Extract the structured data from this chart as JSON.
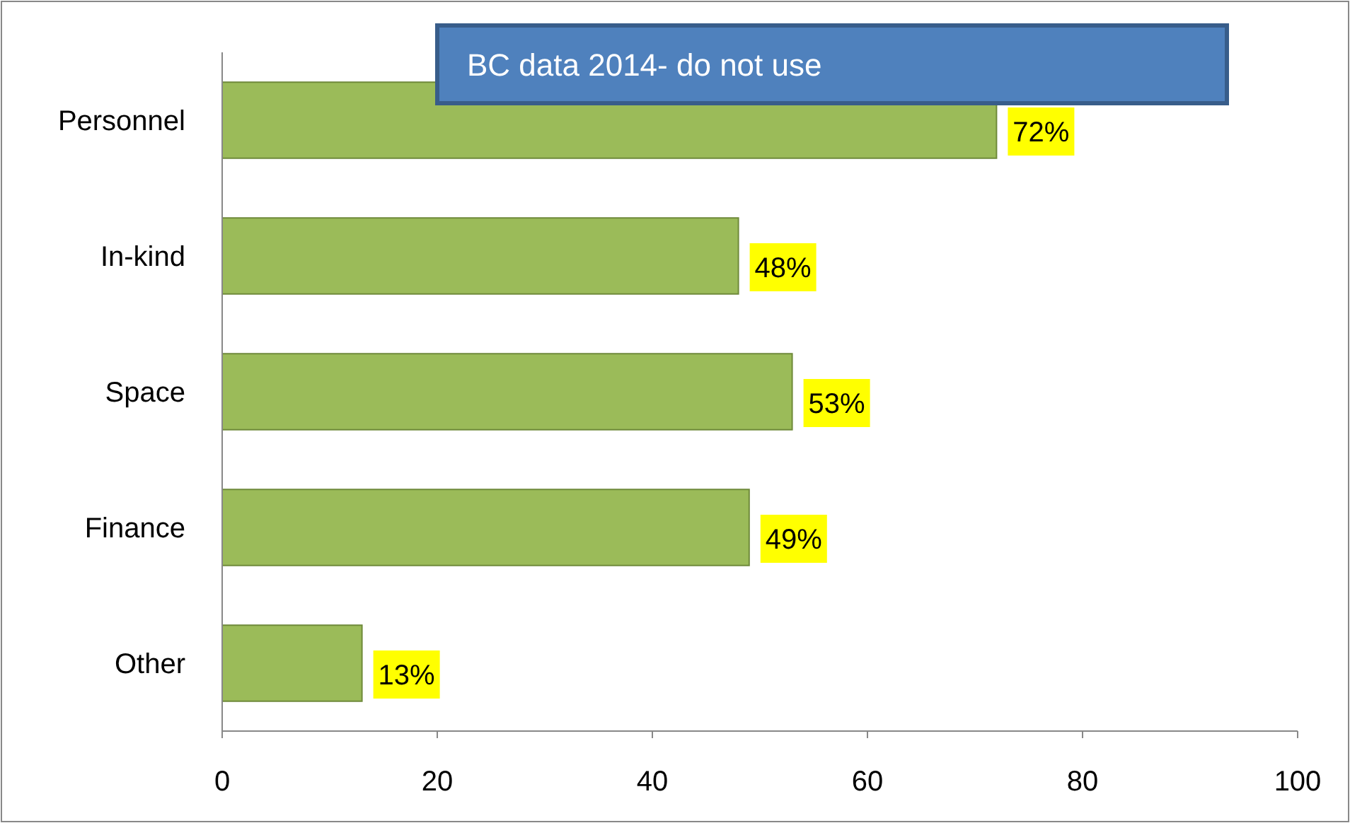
{
  "chart_data": {
    "type": "bar",
    "orientation": "horizontal",
    "categories": [
      "Personnel",
      "In-kind",
      "Space",
      "Finance",
      "Other"
    ],
    "values": [
      72,
      48,
      53,
      49,
      13
    ],
    "value_labels": [
      "72%",
      "48%",
      "53%",
      "49%",
      "13%"
    ],
    "color": "#9bbb59",
    "xlim": [
      0,
      100
    ],
    "xticks": [
      0,
      20,
      40,
      60,
      80,
      100
    ],
    "grid": false,
    "annotations": [
      "BC data 2014- do not use"
    ]
  }
}
